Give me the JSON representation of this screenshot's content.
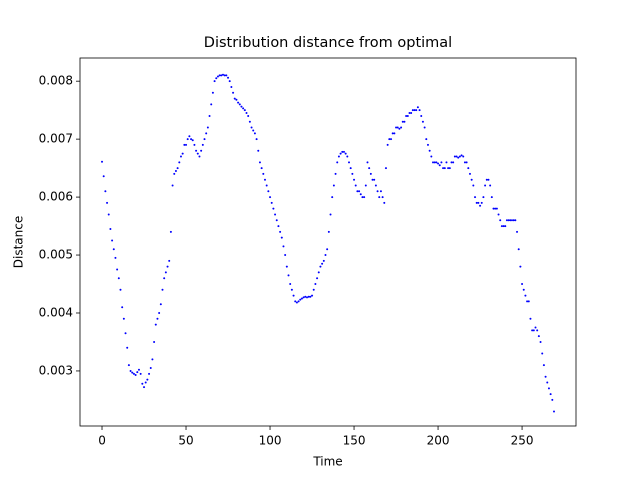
{
  "chart_data": {
    "type": "scatter",
    "title": "Distribution distance from optimal",
    "xlabel": "Time",
    "ylabel": "Distance",
    "color": "#0000ff",
    "xlim": [
      -13.1,
      282.1
    ],
    "ylim": [
      0.00205,
      0.0084
    ],
    "xticks": [
      0,
      50,
      100,
      150,
      200,
      250
    ],
    "yticks": [
      0.003,
      0.004,
      0.005,
      0.006,
      0.007,
      0.008
    ],
    "x": [
      0,
      1,
      2,
      3,
      4,
      5,
      6,
      7,
      8,
      9,
      10,
      11,
      12,
      13,
      14,
      15,
      16,
      17,
      18,
      19,
      20,
      21,
      22,
      23,
      24,
      25,
      26,
      27,
      28,
      29,
      30,
      31,
      32,
      33,
      34,
      35,
      36,
      37,
      38,
      39,
      40,
      41,
      42,
      43,
      44,
      45,
      46,
      47,
      48,
      49,
      50,
      51,
      52,
      53,
      54,
      55,
      56,
      57,
      58,
      59,
      60,
      61,
      62,
      63,
      64,
      65,
      66,
      67,
      68,
      69,
      70,
      71,
      72,
      73,
      74,
      75,
      76,
      77,
      78,
      79,
      80,
      81,
      82,
      83,
      84,
      85,
      86,
      87,
      88,
      89,
      90,
      91,
      92,
      93,
      94,
      95,
      96,
      97,
      98,
      99,
      100,
      101,
      102,
      103,
      104,
      105,
      106,
      107,
      108,
      109,
      110,
      111,
      112,
      113,
      114,
      115,
      116,
      117,
      118,
      119,
      120,
      121,
      122,
      123,
      124,
      125,
      126,
      127,
      128,
      129,
      130,
      131,
      132,
      133,
      134,
      135,
      136,
      137,
      138,
      139,
      140,
      141,
      142,
      143,
      144,
      145,
      146,
      147,
      148,
      149,
      150,
      151,
      152,
      153,
      154,
      155,
      156,
      157,
      158,
      159,
      160,
      161,
      162,
      163,
      164,
      165,
      166,
      167,
      168,
      169,
      170,
      171,
      172,
      173,
      174,
      175,
      176,
      177,
      178,
      179,
      180,
      181,
      182,
      183,
      184,
      185,
      186,
      187,
      188,
      189,
      190,
      191,
      192,
      193,
      194,
      195,
      196,
      197,
      198,
      199,
      200,
      201,
      202,
      203,
      204,
      205,
      206,
      207,
      208,
      209,
      210,
      211,
      212,
      213,
      214,
      215,
      216,
      217,
      218,
      219,
      220,
      221,
      222,
      223,
      224,
      225,
      226,
      227,
      228,
      229,
      230,
      231,
      232,
      233,
      234,
      235,
      236,
      237,
      238,
      239,
      240,
      241,
      242,
      243,
      244,
      245,
      246,
      247,
      248,
      249,
      250,
      251,
      252,
      253,
      254,
      255,
      256,
      257,
      258,
      259,
      260,
      261,
      262,
      263,
      264,
      265,
      266,
      267,
      268,
      269
    ],
    "values": [
      0.00661,
      0.00636,
      0.0061,
      0.0059,
      0.0057,
      0.00545,
      0.00525,
      0.0051,
      0.00495,
      0.00475,
      0.0046,
      0.0044,
      0.0041,
      0.0039,
      0.00365,
      0.0034,
      0.0031,
      0.003,
      0.00297,
      0.00295,
      0.00293,
      0.00298,
      0.00302,
      0.00295,
      0.00278,
      0.00272,
      0.0028,
      0.00285,
      0.00295,
      0.00305,
      0.0032,
      0.0035,
      0.0038,
      0.0039,
      0.004,
      0.00415,
      0.0044,
      0.0046,
      0.0047,
      0.0048,
      0.0049,
      0.0054,
      0.0062,
      0.0064,
      0.00645,
      0.0065,
      0.0066,
      0.0067,
      0.00675,
      0.0069,
      0.0069,
      0.007,
      0.00705,
      0.007,
      0.00698,
      0.0069,
      0.0068,
      0.00675,
      0.0067,
      0.0068,
      0.0069,
      0.007,
      0.0071,
      0.0072,
      0.0074,
      0.0076,
      0.0078,
      0.008,
      0.00805,
      0.00808,
      0.0081,
      0.0081,
      0.00811,
      0.0081,
      0.0081,
      0.00806,
      0.008,
      0.0079,
      0.0078,
      0.0077,
      0.00768,
      0.00763,
      0.0076,
      0.00756,
      0.00753,
      0.0075,
      0.00745,
      0.0074,
      0.0073,
      0.0072,
      0.00715,
      0.0071,
      0.007,
      0.0068,
      0.0066,
      0.0065,
      0.0064,
      0.0063,
      0.0062,
      0.0061,
      0.006,
      0.0059,
      0.0058,
      0.0057,
      0.0056,
      0.0055,
      0.0054,
      0.0053,
      0.00515,
      0.005,
      0.0048,
      0.00465,
      0.0045,
      0.0044,
      0.0043,
      0.0042,
      0.00418,
      0.0042,
      0.00423,
      0.00425,
      0.00427,
      0.00428,
      0.00427,
      0.00428,
      0.00428,
      0.0043,
      0.0044,
      0.0045,
      0.0046,
      0.0047,
      0.0048,
      0.00485,
      0.0049,
      0.005,
      0.0051,
      0.0054,
      0.0057,
      0.006,
      0.0062,
      0.0064,
      0.0066,
      0.0067,
      0.00675,
      0.00678,
      0.00678,
      0.00675,
      0.0067,
      0.0066,
      0.0065,
      0.0064,
      0.0063,
      0.0062,
      0.0061,
      0.0061,
      0.00605,
      0.006,
      0.006,
      0.0062,
      0.0066,
      0.0065,
      0.0064,
      0.0063,
      0.0063,
      0.0062,
      0.0061,
      0.006,
      0.0061,
      0.006,
      0.0059,
      0.0065,
      0.0069,
      0.007,
      0.007,
      0.0071,
      0.0071,
      0.0072,
      0.0072,
      0.00718,
      0.0072,
      0.0073,
      0.0073,
      0.0074,
      0.0074,
      0.00745,
      0.00745,
      0.0075,
      0.0075,
      0.0075,
      0.00755,
      0.0075,
      0.0074,
      0.0073,
      0.0072,
      0.007,
      0.0069,
      0.0068,
      0.0067,
      0.0066,
      0.0066,
      0.0066,
      0.00658,
      0.00655,
      0.0066,
      0.0065,
      0.0065,
      0.0066,
      0.0065,
      0.0065,
      0.0066,
      0.0066,
      0.0067,
      0.0067,
      0.00668,
      0.0067,
      0.00672,
      0.0067,
      0.0066,
      0.0066,
      0.0065,
      0.0064,
      0.0063,
      0.0062,
      0.006,
      0.0059,
      0.0059,
      0.00585,
      0.0059,
      0.006,
      0.0062,
      0.0063,
      0.0063,
      0.0062,
      0.006,
      0.0058,
      0.0058,
      0.0058,
      0.0057,
      0.0056,
      0.0055,
      0.0055,
      0.0055,
      0.0056,
      0.0056,
      0.0056,
      0.0056,
      0.0056,
      0.0056,
      0.0054,
      0.0051,
      0.0048,
      0.0045,
      0.0044,
      0.0043,
      0.0042,
      0.0042,
      0.0039,
      0.0037,
      0.0037,
      0.00375,
      0.0037,
      0.0036,
      0.0035,
      0.0033,
      0.0031,
      0.0029,
      0.0028,
      0.0027,
      0.0026,
      0.0025,
      0.0023
    ]
  }
}
